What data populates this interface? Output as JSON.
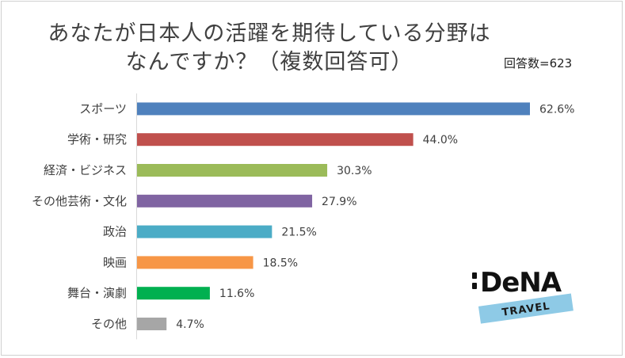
{
  "chart_data": {
    "type": "bar",
    "orientation": "horizontal",
    "title_lines": [
      "あなたが日本人の活躍を期待している分野は",
      "なんですか？（複数回答可）"
    ],
    "respondent_note": "回答数=623",
    "categories": [
      "スポーツ",
      "学術・研究",
      "経済・ビジネス",
      "その他芸術・文化",
      "政治",
      "映画",
      "舞台・演劇",
      "その他"
    ],
    "values": [
      62.6,
      44.0,
      30.3,
      27.9,
      21.5,
      18.5,
      11.6,
      4.7
    ],
    "value_labels": [
      "62.6%",
      "44.0%",
      "30.3%",
      "27.9%",
      "21.5%",
      "18.5%",
      "11.6%",
      "4.7%"
    ],
    "colors": [
      "#4f81bd",
      "#c0504d",
      "#9bbb59",
      "#8064a2",
      "#4bacc6",
      "#f79646",
      "#00b050",
      "#a6a6a6"
    ],
    "xlim": [
      0,
      70
    ],
    "gridlines": false,
    "legend": "none"
  },
  "logo": {
    "text": "DeNA",
    "sub": "TRAVEL",
    "tape_color": "#8ecae6"
  }
}
